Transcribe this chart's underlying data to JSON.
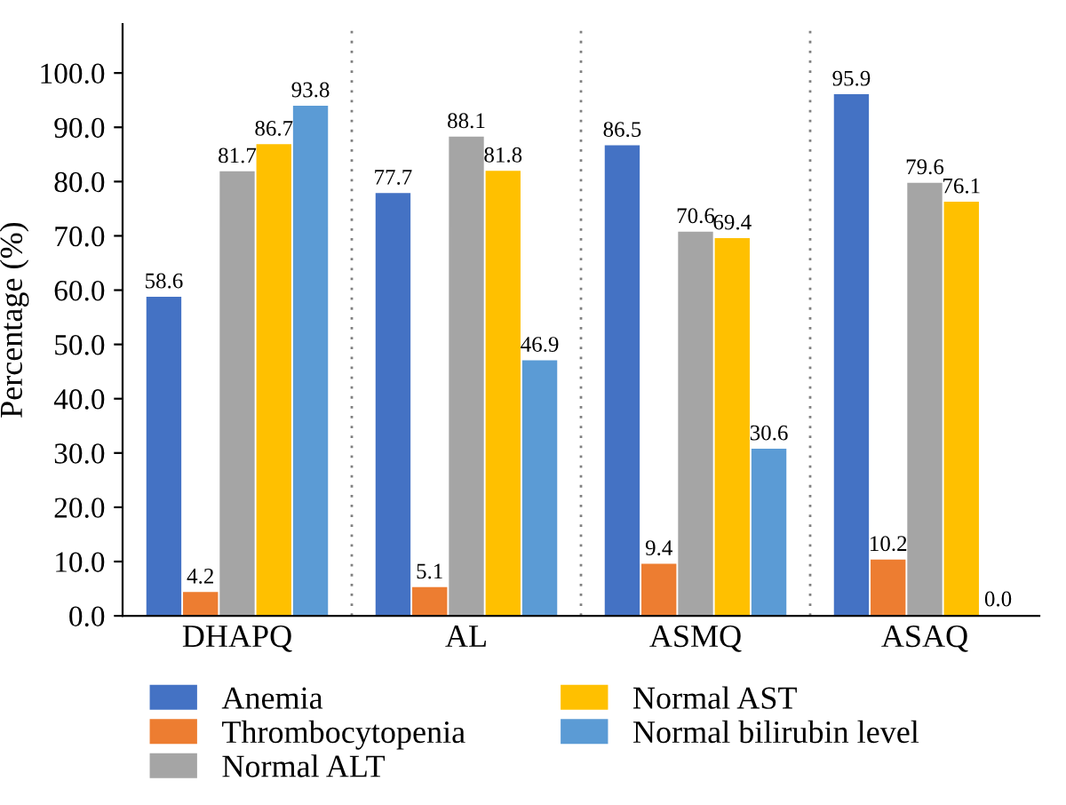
{
  "chart_data": {
    "type": "bar",
    "ylabel": "Percentage (%)",
    "categories": [
      "DHAPQ",
      "AL",
      "ASMQ",
      "ASAQ"
    ],
    "series": [
      {
        "name": "Anemia",
        "color": "#4472c4",
        "values": [
          58.6,
          77.7,
          86.5,
          95.9
        ],
        "value_labels": [
          "58.6",
          "77.7",
          "86.5",
          "95.9"
        ]
      },
      {
        "name": "Thrombocytopenia",
        "color": "#ed7d31",
        "values": [
          4.2,
          5.1,
          9.4,
          10.2
        ],
        "value_labels": [
          "4.2",
          "5.1",
          "9.4",
          "10.2"
        ]
      },
      {
        "name": "Normal ALT",
        "color": "#a5a5a5",
        "values": [
          81.7,
          88.1,
          70.6,
          79.6
        ],
        "value_labels": [
          "81.7",
          "88.1",
          "70.6",
          "79.6"
        ]
      },
      {
        "name": "Normal AST",
        "color": "#ffc000",
        "values": [
          86.7,
          81.8,
          69.4,
          76.1
        ],
        "value_labels": [
          "86.7",
          "81.8",
          "69.4",
          "76.1"
        ]
      },
      {
        "name": "Normal bilirubin level",
        "color": "#5b9bd5",
        "values": [
          93.8,
          46.9,
          30.6,
          0
        ],
        "value_labels": [
          "93.8",
          "46.9",
          "30.6",
          "0.0"
        ]
      }
    ],
    "ylim": [
      0,
      109
    ],
    "yticks": [
      {
        "value": 0,
        "label": "0.0"
      },
      {
        "value": 10,
        "label": "10.0"
      },
      {
        "value": 20,
        "label": "20.0"
      },
      {
        "value": 30,
        "label": "30.0"
      },
      {
        "value": 40,
        "label": "40.0"
      },
      {
        "value": 50,
        "label": "50.0"
      },
      {
        "value": 60,
        "label": "60.0"
      },
      {
        "value": 70,
        "label": "70.0"
      },
      {
        "value": 80,
        "label": "80.0"
      },
      {
        "value": 90,
        "label": "90.0"
      },
      {
        "value": 100,
        "label": "100.0"
      }
    ],
    "grid": "x",
    "legend": "bottom"
  }
}
